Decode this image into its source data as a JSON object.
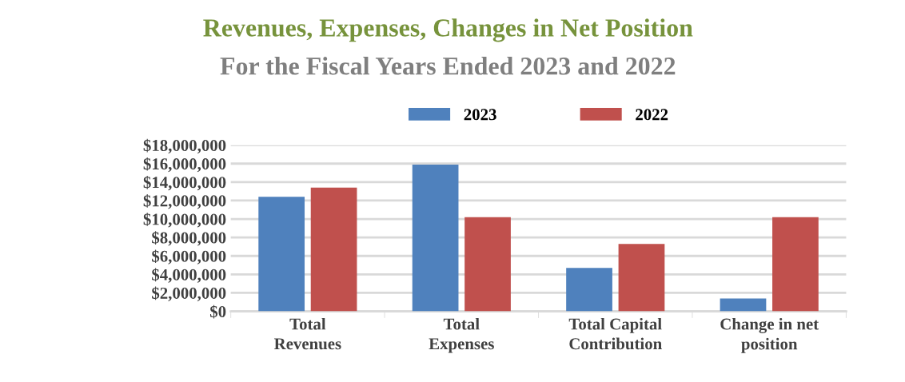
{
  "chart_data": {
    "type": "bar",
    "title": "Revenues, Expenses, Changes in Net Position",
    "subtitle": "For the Fiscal Years Ended 2023 and 2022",
    "categories": [
      "Total\nRevenues",
      "Total\nExpenses",
      "Total Capital\nContribution",
      "Change in net\nposition"
    ],
    "series": [
      {
        "name": "2023",
        "color": "#4f81bd",
        "values": [
          12400000,
          15900000,
          4700000,
          1400000
        ]
      },
      {
        "name": "2022",
        "color": "#c0504d",
        "values": [
          13400000,
          10200000,
          7300000,
          10200000
        ]
      }
    ],
    "ylim": [
      0,
      18000000
    ],
    "yticks": [
      {
        "value": 0,
        "label": "$0"
      },
      {
        "value": 2000000,
        "label": "$2,000,000"
      },
      {
        "value": 4000000,
        "label": "$4,000,000"
      },
      {
        "value": 6000000,
        "label": "$6,000,000"
      },
      {
        "value": 8000000,
        "label": "$8,000,000"
      },
      {
        "value": 10000000,
        "label": "$10,000,000"
      },
      {
        "value": 12000000,
        "label": "$12,000,000"
      },
      {
        "value": 14000000,
        "label": "$14,000,000"
      },
      {
        "value": 16000000,
        "label": "$16,000,000"
      },
      {
        "value": 18000000,
        "label": "$18,000,000"
      }
    ],
    "grid": "y",
    "legend": "top"
  }
}
